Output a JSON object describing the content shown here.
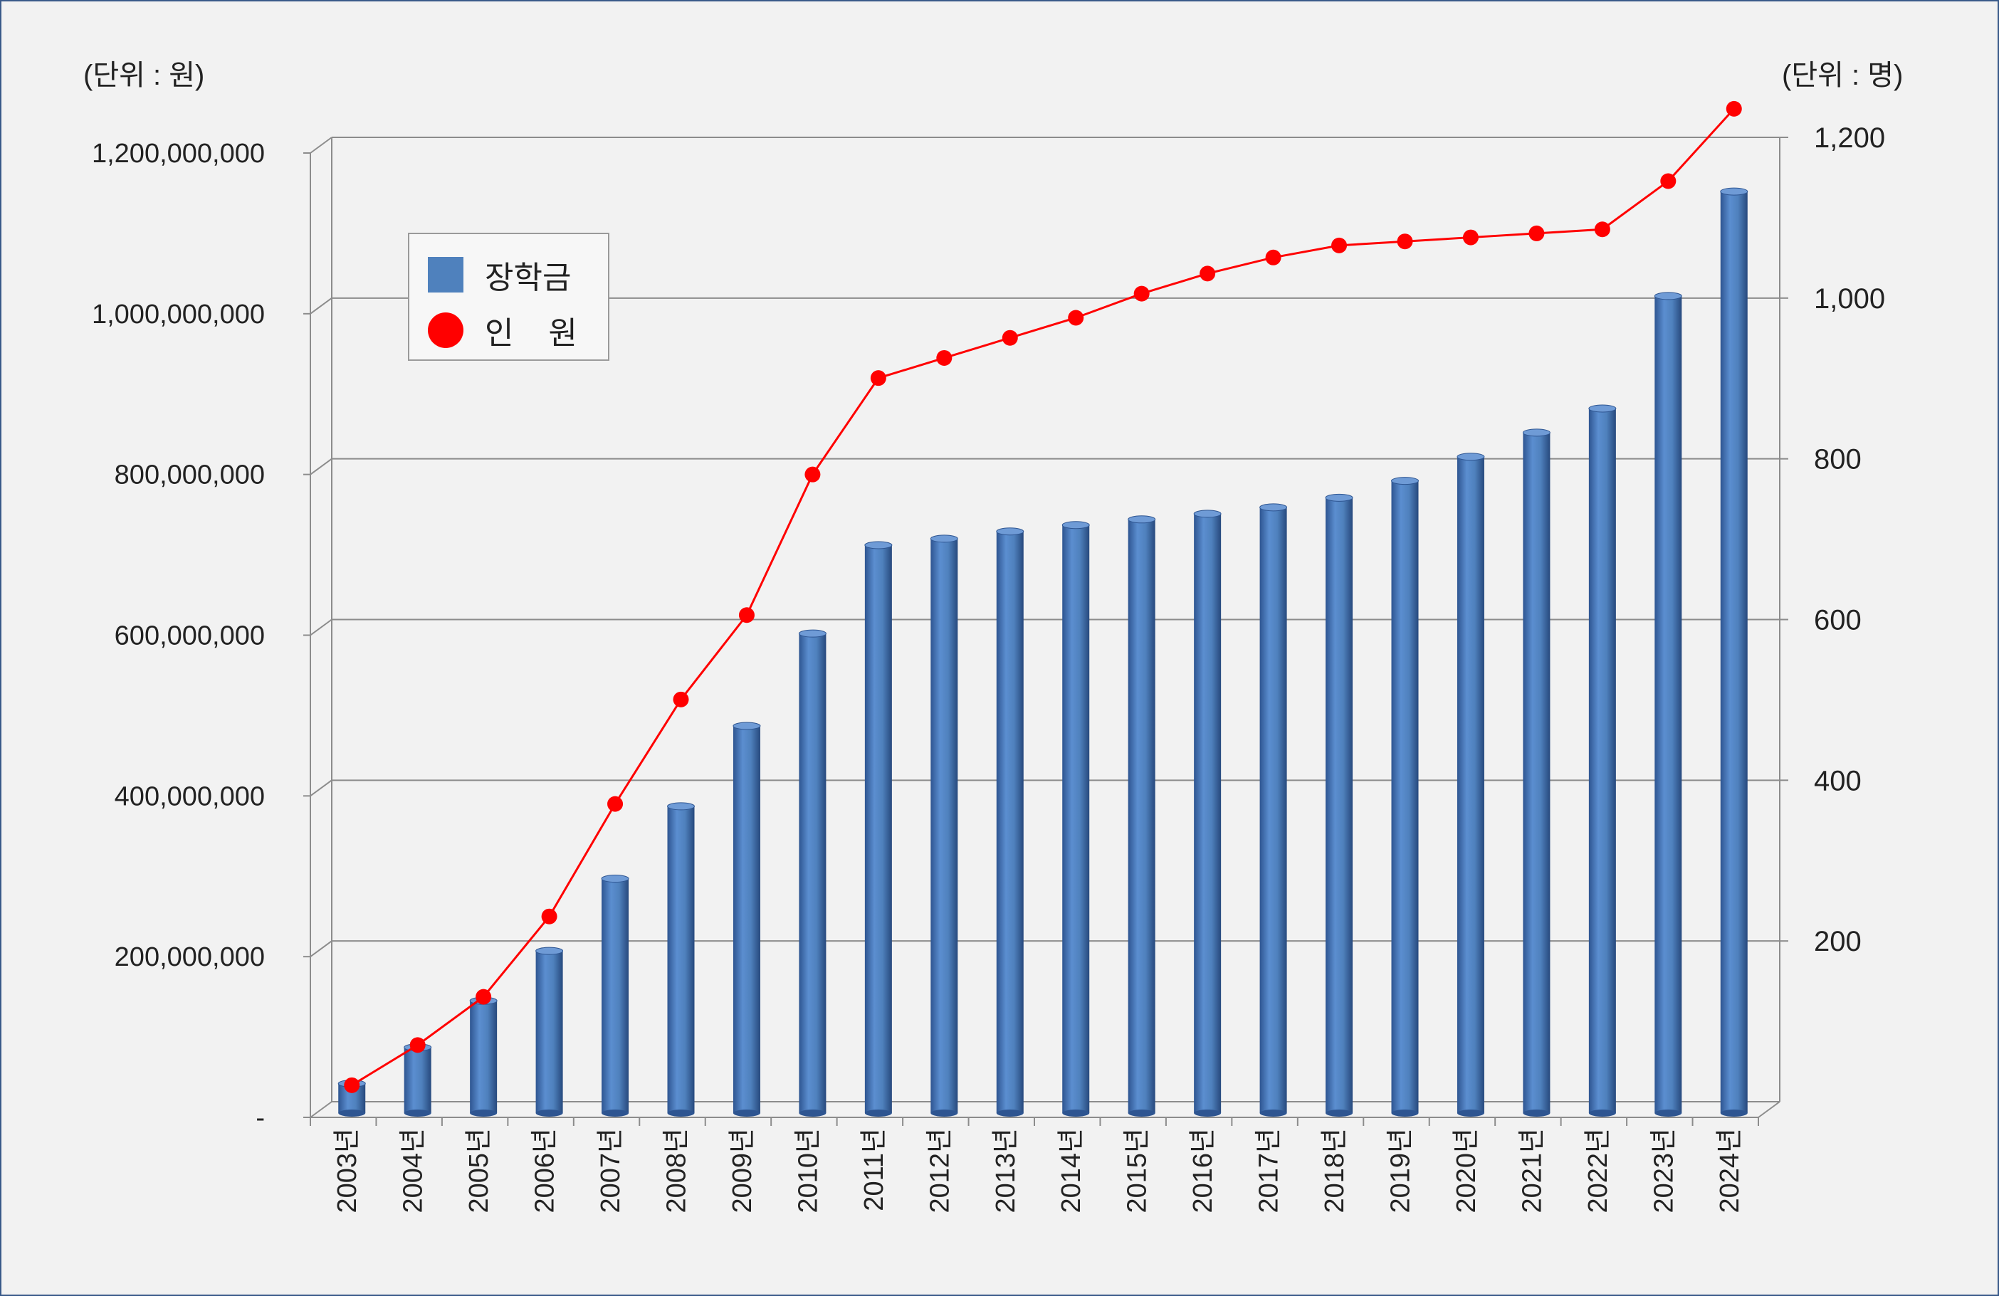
{
  "units": {
    "left": "(단위 : 원)",
    "right": "(단위 : 명)"
  },
  "legend": {
    "bar_label": "장학금",
    "line_label": "인    원"
  },
  "colors": {
    "bar": "#4f81bd",
    "bar_dark": "#2e5591",
    "line": "#ff0000",
    "grid": "#8c8c8c",
    "background": "#f2f2f2"
  },
  "chart_data": {
    "type": "bar",
    "categories": [
      "2003년",
      "2004년",
      "2005년",
      "2006년",
      "2007년",
      "2008년",
      "2009년",
      "2010년",
      "2011년",
      "2012년",
      "2013년",
      "2014년",
      "2015년",
      "2016년",
      "2017년",
      "2018년",
      "2019년",
      "2020년",
      "2021년",
      "2022년",
      "2023년",
      "2024년"
    ],
    "series": [
      {
        "name": "장학금",
        "type": "bar",
        "axis": "left",
        "values": [
          35000000,
          80000000,
          138000000,
          200000000,
          290000000,
          380000000,
          480000000,
          595000000,
          705000000,
          713000000,
          722000000,
          730000000,
          737000000,
          744000000,
          752000000,
          764000000,
          785000000,
          815000000,
          845000000,
          875000000,
          1015000000,
          1145000000
        ]
      },
      {
        "name": "인    원",
        "type": "line",
        "axis": "right",
        "values": [
          40,
          90,
          150,
          250,
          390,
          520,
          625,
          800,
          920,
          945,
          970,
          995,
          1025,
          1050,
          1070,
          1085,
          1090,
          1095,
          1100,
          1105,
          1165,
          1255
        ]
      }
    ],
    "left_axis": {
      "min": 0,
      "max": 1200000000,
      "ticks": [
        "-",
        "200,000,000",
        "400,000,000",
        "600,000,000",
        "800,000,000",
        "1,000,000,000",
        "1,200,000,000"
      ]
    },
    "right_axis": {
      "min": 0,
      "max": 1200,
      "ticks": [
        "200",
        "400",
        "600",
        "800",
        "1,000",
        "1,200"
      ]
    },
    "grid": true,
    "legend_position": "top-left"
  }
}
